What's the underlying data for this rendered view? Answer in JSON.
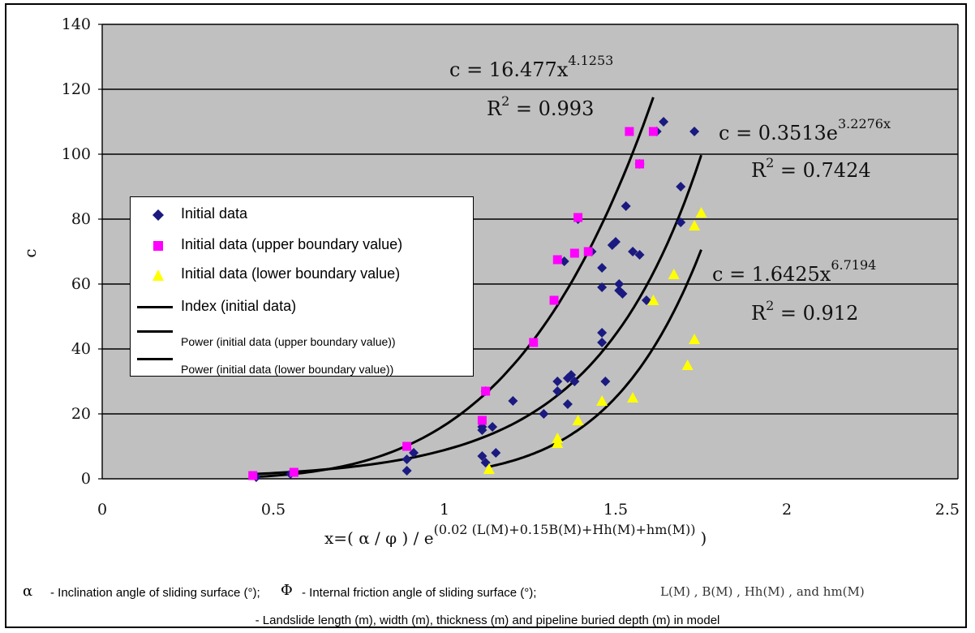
{
  "chart_data": {
    "type": "scatter",
    "xlabel": "x=( α / φ ) / e",
    "xlabel_exponent": "(0.02 (L(M)+0.15B(M)+Hh(M)+hm(M))",
    "xlabel_close": ")",
    "ylabel": "c",
    "xlim": [
      0,
      2.5
    ],
    "ylim": [
      0,
      140
    ],
    "x_ticks": [
      "0",
      "0.5",
      "1",
      "1.5",
      "2",
      "2.5"
    ],
    "y_ticks": [
      "0",
      "20",
      "40",
      "60",
      "80",
      "100",
      "120",
      "140"
    ],
    "grid": "horizontal",
    "plot_background": "#c0c0c0",
    "series": [
      {
        "name": "Initial data",
        "marker": "diamond",
        "color": "#1a1a80",
        "points": [
          [
            0.45,
            0.5
          ],
          [
            0.55,
            1.5
          ],
          [
            0.89,
            6
          ],
          [
            0.89,
            2.5
          ],
          [
            0.91,
            8
          ],
          [
            1.11,
            7
          ],
          [
            1.11,
            15
          ],
          [
            1.11,
            16
          ],
          [
            1.12,
            5
          ],
          [
            1.14,
            16
          ],
          [
            1.15,
            8
          ],
          [
            1.12,
            27
          ],
          [
            1.2,
            24
          ],
          [
            1.29,
            20
          ],
          [
            1.33,
            27
          ],
          [
            1.33,
            30
          ],
          [
            1.35,
            67
          ],
          [
            1.36,
            23
          ],
          [
            1.36,
            31
          ],
          [
            1.37,
            32
          ],
          [
            1.38,
            30
          ],
          [
            1.39,
            80
          ],
          [
            1.43,
            70
          ],
          [
            1.46,
            65
          ],
          [
            1.46,
            59
          ],
          [
            1.46,
            45
          ],
          [
            1.46,
            42
          ],
          [
            1.47,
            30
          ],
          [
            1.49,
            72
          ],
          [
            1.5,
            73
          ],
          [
            1.51,
            60
          ],
          [
            1.51,
            58
          ],
          [
            1.52,
            57
          ],
          [
            1.53,
            84
          ],
          [
            1.55,
            70
          ],
          [
            1.57,
            69
          ],
          [
            1.57,
            97
          ],
          [
            1.59,
            55
          ],
          [
            1.62,
            107
          ],
          [
            1.64,
            110
          ],
          [
            1.69,
            90
          ],
          [
            1.69,
            79
          ],
          [
            1.73,
            107
          ]
        ]
      },
      {
        "name": "Initial data (upper boundary value)",
        "marker": "square",
        "color": "#ff00ff",
        "points": [
          [
            0.44,
            1
          ],
          [
            0.56,
            2
          ],
          [
            0.89,
            10
          ],
          [
            1.11,
            18
          ],
          [
            1.12,
            27
          ],
          [
            1.26,
            42
          ],
          [
            1.32,
            55
          ],
          [
            1.33,
            67.5
          ],
          [
            1.38,
            69.5
          ],
          [
            1.39,
            80.5
          ],
          [
            1.42,
            70
          ],
          [
            1.54,
            107
          ],
          [
            1.57,
            97
          ],
          [
            1.61,
            107
          ]
        ]
      },
      {
        "name": "Initial data (lower boundary value)",
        "marker": "triangle",
        "color": "#ffff00",
        "points": [
          [
            1.13,
            3
          ],
          [
            1.33,
            11
          ],
          [
            1.33,
            12.5
          ],
          [
            1.39,
            18
          ],
          [
            1.46,
            24
          ],
          [
            1.55,
            25
          ],
          [
            1.61,
            55
          ],
          [
            1.67,
            63
          ],
          [
            1.71,
            35
          ],
          [
            1.73,
            43
          ],
          [
            1.73,
            78
          ],
          [
            1.75,
            82
          ]
        ]
      }
    ],
    "trendlines": [
      {
        "name": "Index (initial data)",
        "kind": "exponential",
        "a": 0.3513,
        "b": 3.2276,
        "x_range": [
          0.44,
          1.75
        ]
      },
      {
        "name": "Power (initial data (upper boundary value))",
        "kind": "power",
        "a": 16.477,
        "b": 4.1253,
        "x_range": [
          0.44,
          1.61
        ]
      },
      {
        "name": "Power (initial data (lower boundary value))",
        "kind": "power",
        "a": 1.6425,
        "b": 6.7194,
        "x_range": [
          1.13,
          1.75
        ]
      }
    ],
    "annotations": [
      {
        "eq_main": "c = 16.477x",
        "eq_sup": "4.1253",
        "r2_label": "R",
        "r2_sup": "2",
        "r2_value": " = 0.993"
      },
      {
        "eq_main": "c = 0.3513e",
        "eq_sup": "3.2276x",
        "r2_label": "R",
        "r2_sup": "2",
        "r2_value": " = 0.7424"
      },
      {
        "eq_main": "c = 1.6425x",
        "eq_sup": "6.7194",
        "r2_label": "R",
        "r2_sup": "2",
        "r2_value": " = 0.912"
      }
    ]
  },
  "legend": {
    "items": [
      {
        "label": "Initial data"
      },
      {
        "label": "Initial data (upper boundary value)"
      },
      {
        "label": "Initial data (lower boundary value)"
      },
      {
        "label": "Index (initial data)"
      },
      {
        "label": "Power (initial data (upper boundary value))"
      },
      {
        "label": "Power (initial data (lower boundary value))"
      }
    ]
  },
  "caption": {
    "alpha": "α",
    "alpha_desc": "- Inclination angle of sliding surface (°);",
    "phi": "Φ",
    "phi_desc": "- Internal friction angle of sliding surface (°);",
    "vars": "L(M) , B(M) , Hh(M) , and  hm(M)",
    "line2": "- Landslide length (m), width (m), thickness (m) and pipeline buried depth (m) in model"
  }
}
